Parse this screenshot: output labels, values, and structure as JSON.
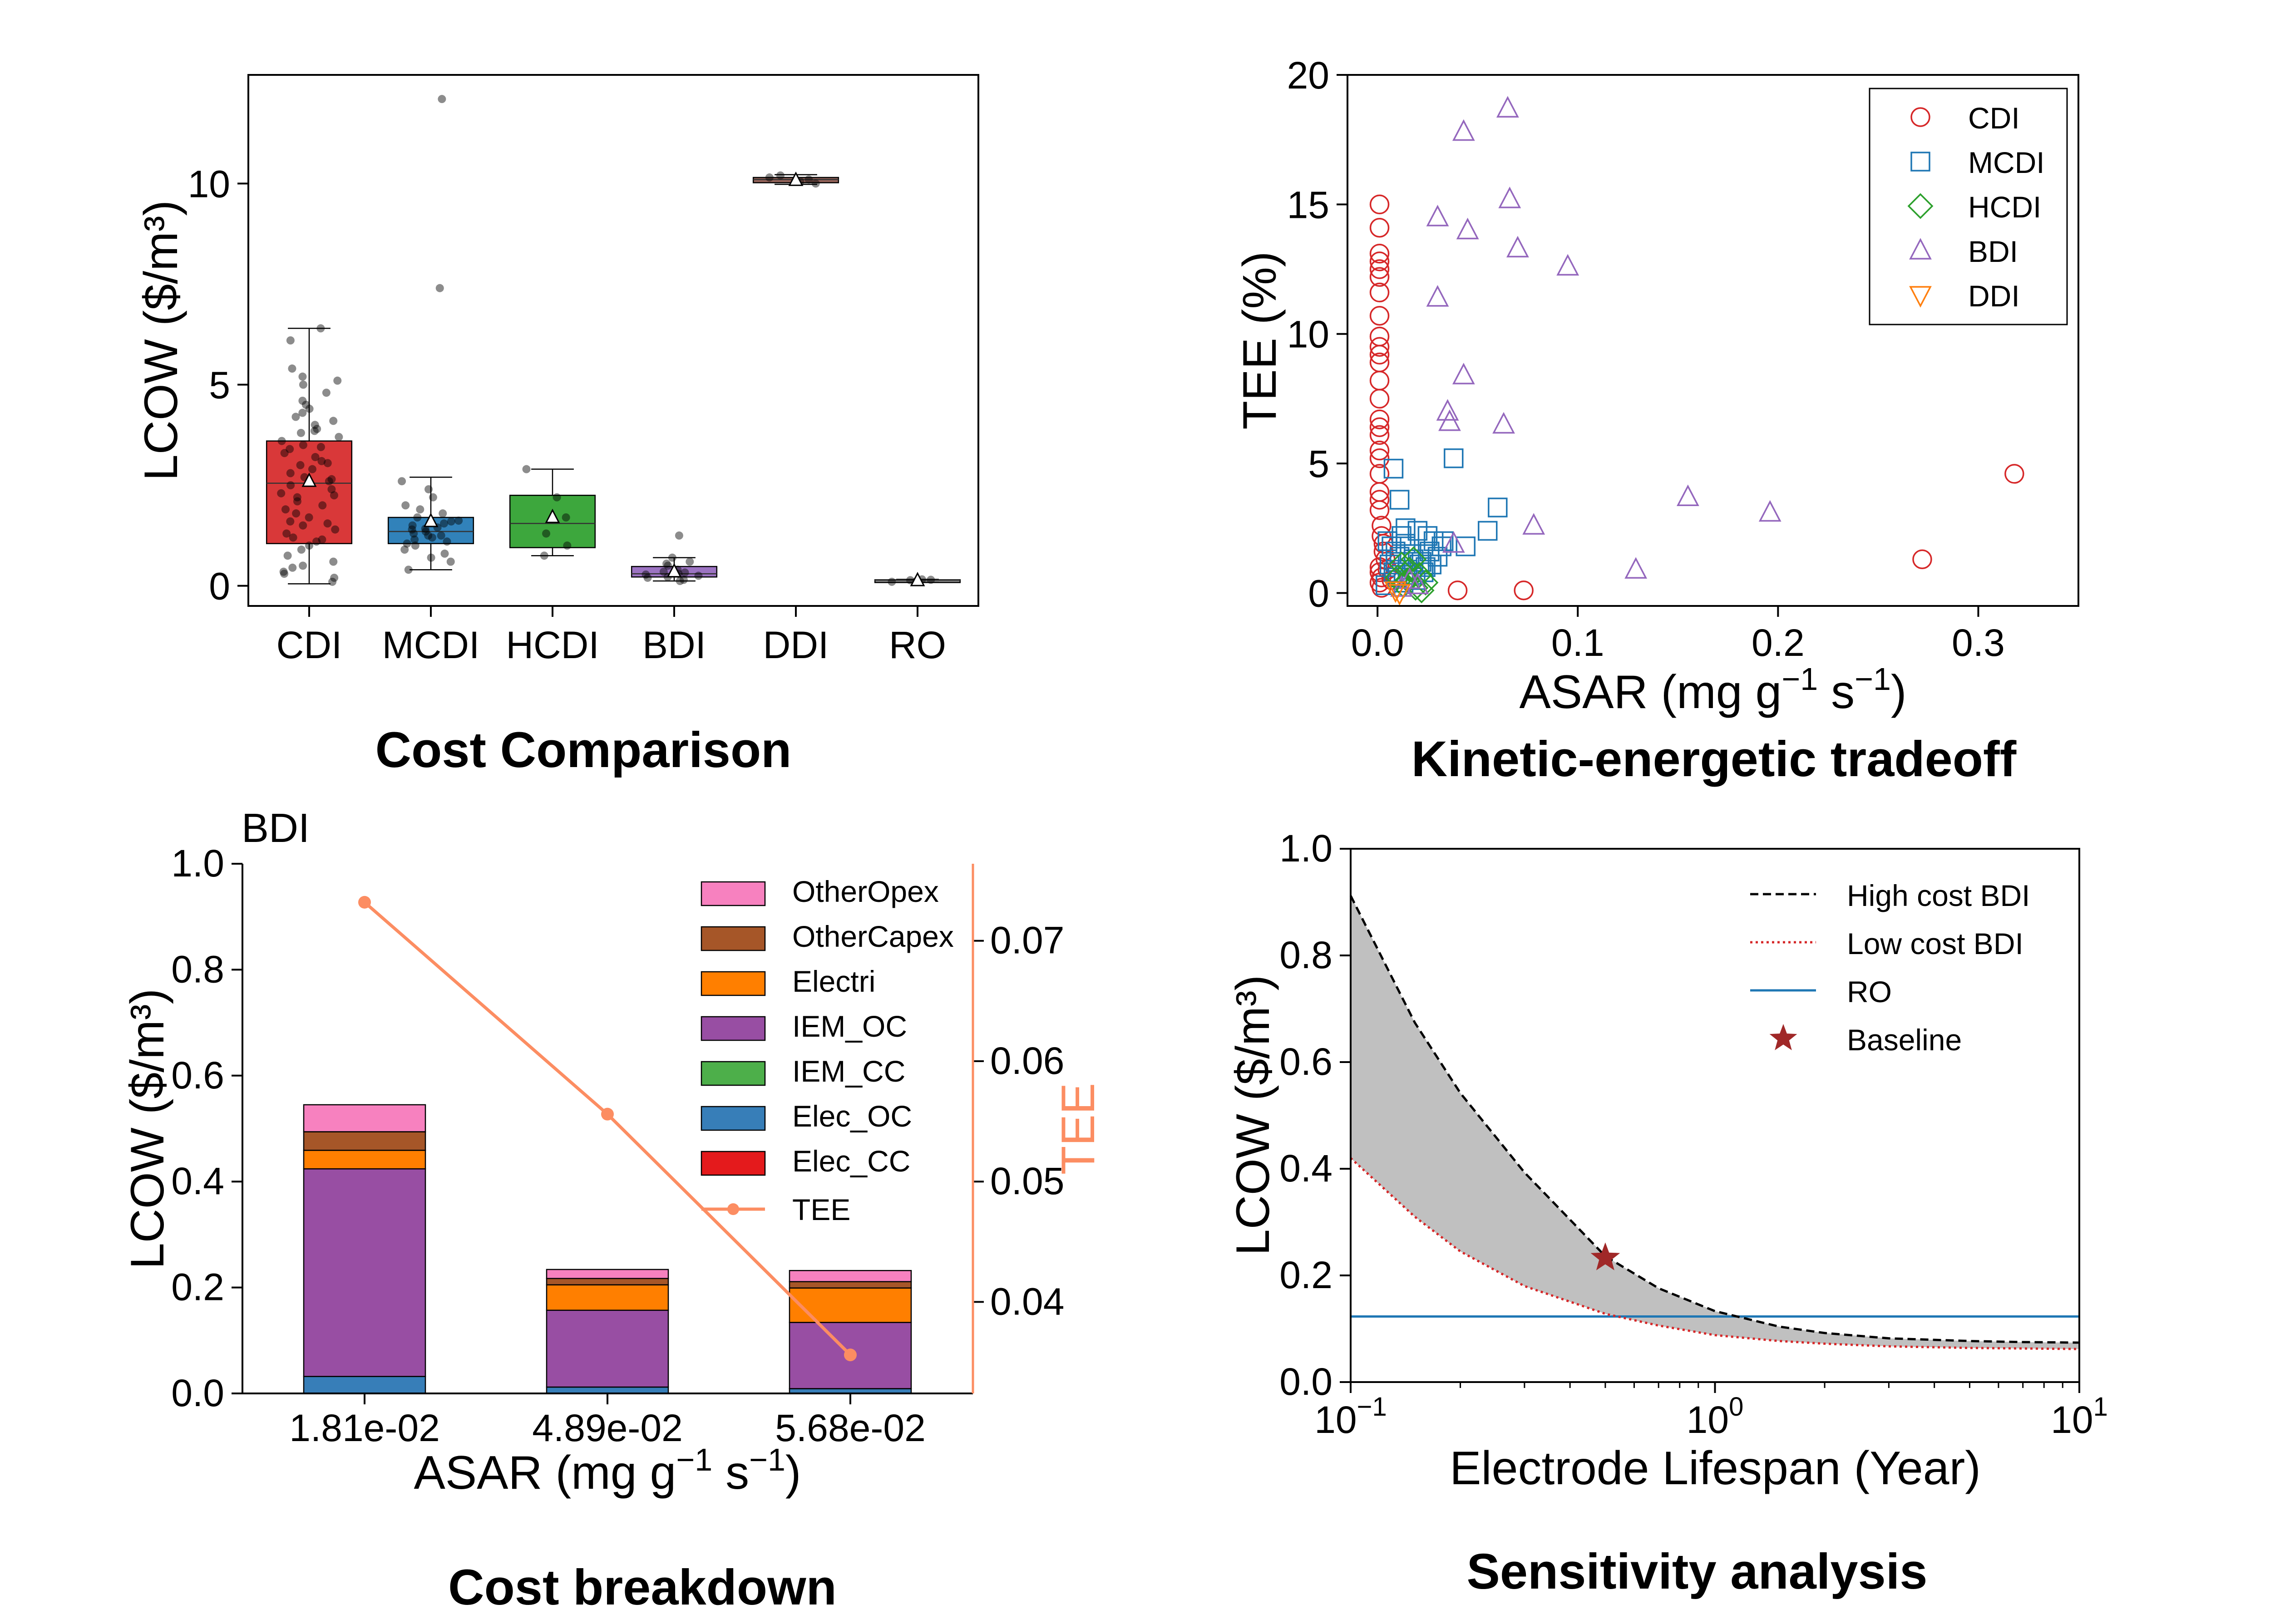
{
  "chart_data": [
    {
      "type": "box",
      "panel_title": "Cost Comparison",
      "ylabel": "LCOW ($/m³)",
      "ylim": [
        -0.5,
        12.7
      ],
      "yticks": [
        0,
        5,
        10
      ],
      "categories": [
        "CDI",
        "MCDI",
        "HCDI",
        "BDI",
        "DDI",
        "RO"
      ],
      "colors": [
        "#d62728",
        "#1f77b4",
        "#2ca02c",
        "#9467bd",
        "#8c564b",
        "#7f7f7f"
      ],
      "boxes": [
        {
          "q1": 1.05,
          "median": 2.55,
          "q3": 3.6,
          "whislo": 0.05,
          "whishi": 6.4,
          "mean": 2.6
        },
        {
          "q1": 1.05,
          "median": 1.35,
          "q3": 1.7,
          "whislo": 0.4,
          "whishi": 2.7,
          "mean": 1.6
        },
        {
          "q1": 0.95,
          "median": 1.55,
          "q3": 2.25,
          "whislo": 0.75,
          "whishi": 2.9,
          "mean": 1.7
        },
        {
          "q1": 0.22,
          "median": 0.3,
          "q3": 0.48,
          "whislo": 0.12,
          "whishi": 0.7,
          "mean": 0.35
        },
        {
          "q1": 10.02,
          "median": 10.1,
          "q3": 10.15,
          "whislo": 9.98,
          "whishi": 10.22,
          "mean": 10.08
        },
        {
          "q1": 0.12,
          "median": 0.14,
          "q3": 0.15,
          "whislo": 0.1,
          "whishi": 0.16,
          "mean": 0.13
        }
      ],
      "points": [
        [
          0.1,
          0.2,
          0.35,
          0.5,
          0.6,
          0.75,
          0.9,
          1.0,
          1.1,
          1.2,
          1.3,
          1.4,
          1.5,
          1.6,
          1.7,
          1.8,
          1.9,
          2.0,
          2.1,
          2.2,
          2.3,
          2.4,
          2.5,
          2.6,
          2.7,
          2.8,
          2.9,
          3.0,
          3.1,
          3.2,
          3.3,
          3.4,
          3.5,
          3.6,
          3.7,
          3.8,
          3.9,
          4.0,
          4.1,
          4.2,
          4.3,
          4.5,
          4.6,
          4.8,
          5.0,
          5.2,
          5.4,
          6.1,
          6.4,
          0.3,
          0.45,
          1.15,
          1.55,
          2.25,
          2.65,
          3.05,
          3.45,
          3.85,
          4.4,
          5.1
        ],
        [
          0.4,
          0.6,
          0.8,
          0.9,
          1.0,
          1.05,
          1.1,
          1.15,
          1.2,
          1.25,
          1.3,
          1.35,
          1.4,
          1.45,
          1.5,
          1.55,
          1.6,
          1.7,
          1.8,
          1.9,
          2.0,
          2.2,
          2.4,
          2.6,
          7.4,
          12.1,
          0.7,
          1.25,
          1.42,
          1.62
        ],
        [
          0.75,
          1.0,
          1.3,
          1.7,
          2.2,
          2.9
        ],
        [
          0.12,
          0.15,
          0.2,
          0.22,
          0.25,
          0.28,
          0.3,
          0.33,
          0.35,
          0.4,
          0.5,
          0.55,
          0.6,
          0.7,
          1.25
        ],
        [
          10.0,
          10.05,
          10.1,
          10.15,
          10.2
        ],
        [
          0.1,
          0.12,
          0.14,
          0.15,
          0.16
        ]
      ]
    },
    {
      "type": "scatter",
      "panel_title": "Kinetic-energetic tradeoff",
      "xlabel": "ASAR (mg g⁻¹ s⁻¹)",
      "ylabel": "TEE (%)",
      "xlim": [
        -0.015,
        0.35
      ],
      "ylim": [
        -0.5,
        20
      ],
      "xticks": [
        0.0,
        0.1,
        0.2,
        0.3
      ],
      "yticks": [
        0,
        5,
        10,
        15,
        20
      ],
      "legend": [
        "CDI",
        "MCDI",
        "HCDI",
        "BDI",
        "DDI"
      ],
      "series": [
        {
          "name": "CDI",
          "color": "#d62728",
          "marker": "circle",
          "points": [
            [
              0.001,
              15.0
            ],
            [
              0.001,
              14.1
            ],
            [
              0.001,
              13.1
            ],
            [
              0.001,
              12.8
            ],
            [
              0.001,
              12.5
            ],
            [
              0.001,
              12.2
            ],
            [
              0.001,
              11.6
            ],
            [
              0.001,
              10.7
            ],
            [
              0.001,
              9.9
            ],
            [
              0.001,
              9.5
            ],
            [
              0.001,
              9.2
            ],
            [
              0.001,
              8.9
            ],
            [
              0.001,
              8.2
            ],
            [
              0.001,
              7.5
            ],
            [
              0.001,
              6.7
            ],
            [
              0.001,
              6.4
            ],
            [
              0.001,
              6.1
            ],
            [
              0.001,
              5.5
            ],
            [
              0.001,
              5.2
            ],
            [
              0.001,
              4.6
            ],
            [
              0.001,
              3.9
            ],
            [
              0.001,
              3.6
            ],
            [
              0.001,
              3.2
            ],
            [
              0.002,
              2.6
            ],
            [
              0.002,
              2.2
            ],
            [
              0.003,
              1.9
            ],
            [
              0.003,
              1.6
            ],
            [
              0.004,
              1.3
            ],
            [
              0.001,
              1.0
            ],
            [
              0.001,
              0.8
            ],
            [
              0.002,
              0.6
            ],
            [
              0.001,
              0.4
            ],
            [
              0.002,
              0.2
            ],
            [
              0.005,
              0.9
            ],
            [
              0.007,
              0.5
            ],
            [
              0.04,
              0.1
            ],
            [
              0.073,
              0.1
            ],
            [
              0.272,
              1.3
            ],
            [
              0.318,
              4.6
            ]
          ]
        },
        {
          "name": "MCDI",
          "color": "#1f77b4",
          "marker": "square",
          "points": [
            [
              0.008,
              4.8
            ],
            [
              0.011,
              3.6
            ],
            [
              0.038,
              5.2
            ],
            [
              0.06,
              3.3
            ],
            [
              0.055,
              2.4
            ],
            [
              0.044,
              1.8
            ],
            [
              0.005,
              2.0
            ],
            [
              0.007,
              1.8
            ],
            [
              0.009,
              1.6
            ],
            [
              0.011,
              1.4
            ],
            [
              0.012,
              2.2
            ],
            [
              0.014,
              1.9
            ],
            [
              0.016,
              1.5
            ],
            [
              0.018,
              1.3
            ],
            [
              0.02,
              2.4
            ],
            [
              0.022,
              1.2
            ],
            [
              0.024,
              1.0
            ],
            [
              0.026,
              1.6
            ],
            [
              0.028,
              2.0
            ],
            [
              0.03,
              1.4
            ],
            [
              0.032,
              1.8
            ],
            [
              0.006,
              1.1
            ],
            [
              0.008,
              0.8
            ],
            [
              0.01,
              0.6
            ],
            [
              0.013,
              0.4
            ],
            [
              0.015,
              0.9
            ],
            [
              0.017,
              0.7
            ],
            [
              0.019,
              0.5
            ],
            [
              0.021,
              1.1
            ],
            [
              0.023,
              0.8
            ],
            [
              0.025,
              2.2
            ],
            [
              0.027,
              1.1
            ],
            [
              0.004,
              0.3
            ],
            [
              0.009,
              1.2
            ],
            [
              0.014,
              2.5
            ],
            [
              0.033,
              2.0
            ]
          ]
        },
        {
          "name": "HCDI",
          "color": "#2ca02c",
          "marker": "diamond",
          "points": [
            [
              0.01,
              0.6
            ],
            [
              0.013,
              0.3
            ],
            [
              0.016,
              0.9
            ],
            [
              0.019,
              0.2
            ],
            [
              0.021,
              0.7
            ],
            [
              0.024,
              0.4
            ],
            [
              0.012,
              1.1
            ],
            [
              0.018,
              1.3
            ],
            [
              0.022,
              0.1
            ],
            [
              0.015,
              0.5
            ]
          ]
        },
        {
          "name": "BDI",
          "color": "#9467bd",
          "marker": "triangle",
          "points": [
            [
              0.065,
              18.7
            ],
            [
              0.043,
              17.8
            ],
            [
              0.066,
              15.2
            ],
            [
              0.03,
              14.5
            ],
            [
              0.045,
              14.0
            ],
            [
              0.07,
              13.3
            ],
            [
              0.095,
              12.6
            ],
            [
              0.03,
              11.4
            ],
            [
              0.043,
              8.4
            ],
            [
              0.035,
              7.0
            ],
            [
              0.036,
              6.6
            ],
            [
              0.063,
              6.5
            ],
            [
              0.155,
              3.7
            ],
            [
              0.196,
              3.1
            ],
            [
              0.078,
              2.6
            ],
            [
              0.038,
              1.9
            ],
            [
              0.129,
              0.9
            ],
            [
              0.012,
              0.2
            ],
            [
              0.016,
              0.5
            ],
            [
              0.02,
              0.3
            ]
          ]
        },
        {
          "name": "DDI",
          "color": "#ff7f0e",
          "marker": "triangle-down",
          "points": [
            [
              0.009,
              0.1
            ],
            [
              0.011,
              0.0
            ]
          ]
        }
      ]
    },
    {
      "type": "stacked_bar",
      "panel_title": "Cost breakdown",
      "subtitle": "BDI",
      "xlabel": "ASAR (mg g⁻¹ s⁻¹)",
      "ylabel": "LCOW ($/m³)",
      "y2label": "TEE",
      "categories": [
        "1.81e-02",
        "4.89e-02",
        "5.68e-02"
      ],
      "ylim": [
        0.0,
        1.0
      ],
      "yticks": [
        0.0,
        0.2,
        0.4,
        0.6,
        0.8,
        1.0
      ],
      "y2lim": [
        0.0324,
        0.0764
      ],
      "y2ticks": [
        0.04,
        0.05,
        0.06,
        0.07
      ],
      "series": [
        {
          "name": "Elec_CC",
          "color": "#e41a1c",
          "values": [
            0.0,
            0.0,
            0.0
          ]
        },
        {
          "name": "Elec_OC",
          "color": "#377eb8",
          "values": [
            0.032,
            0.012,
            0.009
          ]
        },
        {
          "name": "IEM_CC",
          "color": "#4daf4a",
          "values": [
            0.0,
            0.0,
            0.0
          ]
        },
        {
          "name": "IEM_OC",
          "color": "#984ea3",
          "values": [
            0.392,
            0.145,
            0.125
          ]
        },
        {
          "name": "Electri",
          "color": "#ff7f00",
          "values": [
            0.035,
            0.048,
            0.065
          ]
        },
        {
          "name": "OtherCapex",
          "color": "#a65628",
          "values": [
            0.035,
            0.012,
            0.012
          ]
        },
        {
          "name": "OtherOpex",
          "color": "#f781bf",
          "values": [
            0.051,
            0.017,
            0.021
          ]
        }
      ],
      "line": {
        "name": "TEE",
        "color": "#fc8d62",
        "values": [
          0.0732,
          0.0556,
          0.0356
        ]
      },
      "legend": [
        "OtherOpex",
        "OtherCapex",
        "Electri",
        "IEM_OC",
        "IEM_CC",
        "Elec_OC",
        "Elec_CC",
        "TEE"
      ]
    },
    {
      "type": "line",
      "panel_title": "Sensitivity analysis",
      "xlabel": "Electrode Lifespan (Year)",
      "ylabel": "LCOW ($/m³)",
      "xscale": "log",
      "xlim": [
        0.1,
        10
      ],
      "ylim": [
        0.0,
        1.0
      ],
      "yticks": [
        0.0,
        0.2,
        0.4,
        0.6,
        0.8,
        1.0
      ],
      "xtick_labels": [
        {
          "base": "10",
          "exp": "−1"
        },
        {
          "base": "10",
          "exp": "0"
        },
        {
          "base": "10",
          "exp": "1"
        }
      ],
      "series": [
        {
          "name": "High cost BDI",
          "color": "#000000",
          "style": "dashed",
          "x": [
            0.1,
            0.15,
            0.2,
            0.3,
            0.5,
            0.7,
            1.0,
            1.5,
            2.0,
            3.0,
            5.0,
            7.0,
            10.0
          ],
          "y": [
            0.912,
            0.674,
            0.542,
            0.393,
            0.236,
            0.176,
            0.133,
            0.104,
            0.092,
            0.082,
            0.077,
            0.075,
            0.074
          ]
        },
        {
          "name": "Low cost BDI",
          "color": "#d62728",
          "style": "dotted",
          "x": [
            0.1,
            0.15,
            0.2,
            0.3,
            0.5,
            0.7,
            1.0,
            1.5,
            2.0,
            3.0,
            5.0,
            7.0,
            10.0
          ],
          "y": [
            0.42,
            0.31,
            0.245,
            0.18,
            0.128,
            0.106,
            0.088,
            0.077,
            0.072,
            0.067,
            0.064,
            0.063,
            0.062
          ]
        },
        {
          "name": "RO",
          "color": "#1f77b4",
          "style": "solid",
          "constant": 0.123
        }
      ],
      "baseline": {
        "name": "Baseline",
        "x": 0.5,
        "y": 0.233,
        "color": "#a02828"
      },
      "legend": [
        "High cost BDI",
        "Low cost BDI",
        "RO",
        "Baseline"
      ]
    }
  ]
}
